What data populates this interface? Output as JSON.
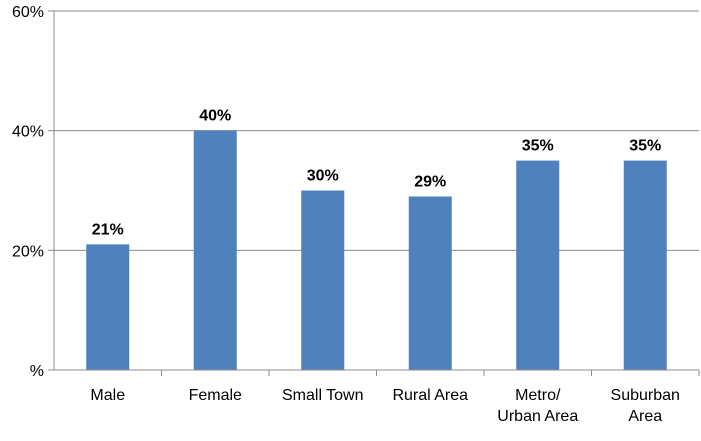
{
  "chart_data": {
    "type": "bar",
    "categories": [
      [
        "Male"
      ],
      [
        "Female"
      ],
      [
        "Small Town"
      ],
      [
        "Rural Area"
      ],
      [
        "Metro/",
        "Urban Area"
      ],
      [
        "Suburban",
        "Area"
      ]
    ],
    "values": [
      21,
      40,
      30,
      29,
      35,
      35
    ],
    "data_labels": [
      "21%",
      "40%",
      "30%",
      "29%",
      "35%",
      "35%"
    ],
    "y_ticks": [
      {
        "value": 0,
        "label": "%"
      },
      {
        "value": 20,
        "label": "20%"
      },
      {
        "value": 40,
        "label": "40%"
      },
      {
        "value": 60,
        "label": "60%"
      }
    ],
    "ylim": [
      0,
      60
    ],
    "grid": true,
    "bar_color": "#4f81bd",
    "grid_color": "#8c8c8c",
    "axis_color": "#8c8c8c"
  }
}
